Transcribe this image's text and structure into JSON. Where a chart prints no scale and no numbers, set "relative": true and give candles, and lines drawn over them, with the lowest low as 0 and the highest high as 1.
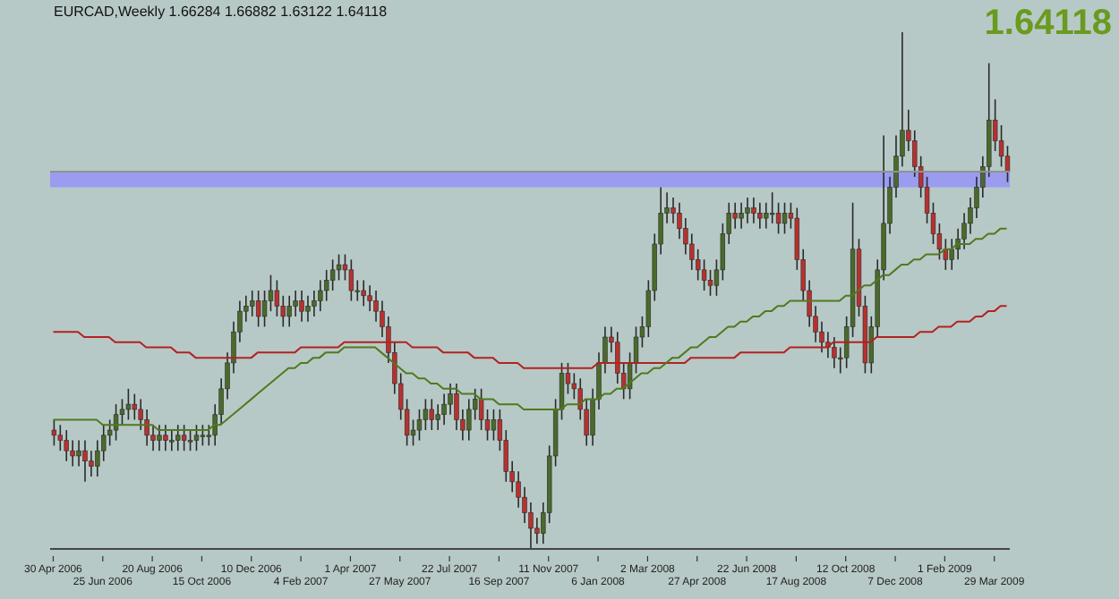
{
  "chart_data": {
    "type": "candlestick",
    "title": "EURCAD,Weekly 1.66284 1.66882 1.63122 1.64118",
    "annotations": [
      "1.64118"
    ],
    "relative": true,
    "categories": [
      "30 Apr 2006",
      null,
      null,
      null,
      null,
      null,
      null,
      null,
      "25 Jun 2006",
      null,
      null,
      null,
      null,
      null,
      null,
      null,
      "20 Aug 2006",
      null,
      null,
      null,
      null,
      null,
      null,
      null,
      "15 Oct 2006",
      null,
      null,
      null,
      null,
      null,
      null,
      null,
      "10 Dec 2006",
      null,
      null,
      null,
      null,
      null,
      null,
      null,
      "4 Feb 2007",
      null,
      null,
      null,
      null,
      null,
      null,
      null,
      "1 Apr 2007",
      null,
      null,
      null,
      null,
      null,
      null,
      null,
      "27 May 2007",
      null,
      null,
      null,
      null,
      null,
      null,
      null,
      "22 Jul 2007",
      null,
      null,
      null,
      null,
      null,
      null,
      null,
      "16 Sep 2007",
      null,
      null,
      null,
      null,
      null,
      null,
      null,
      "11 Nov 2007",
      null,
      null,
      null,
      null,
      null,
      null,
      null,
      "6 Jan 2008",
      null,
      null,
      null,
      null,
      null,
      null,
      null,
      "2 Mar 2008",
      null,
      null,
      null,
      null,
      null,
      null,
      null,
      "27 Apr 2008",
      null,
      null,
      null,
      null,
      null,
      null,
      null,
      "22 Jun 2008",
      null,
      null,
      null,
      null,
      null,
      null,
      null,
      "17 Aug 2008",
      null,
      null,
      null,
      null,
      null,
      null,
      null,
      "12 Oct 2008",
      null,
      null,
      null,
      null,
      null,
      null,
      null,
      "7 Dec 2008",
      null,
      null,
      null,
      null,
      null,
      null,
      null,
      "1 Feb 2009",
      null,
      null,
      null,
      null,
      null,
      null,
      null,
      "29 Mar 2009",
      null,
      null
    ],
    "ohlc": [
      [
        0.23,
        0.25,
        0.2,
        0.22
      ],
      [
        0.22,
        0.24,
        0.19,
        0.21
      ],
      [
        0.21,
        0.23,
        0.17,
        0.19
      ],
      [
        0.19,
        0.21,
        0.16,
        0.18
      ],
      [
        0.18,
        0.21,
        0.16,
        0.19
      ],
      [
        0.19,
        0.21,
        0.13,
        0.17
      ],
      [
        0.17,
        0.19,
        0.14,
        0.16
      ],
      [
        0.16,
        0.21,
        0.14,
        0.19
      ],
      [
        0.19,
        0.24,
        0.17,
        0.22
      ],
      [
        0.22,
        0.25,
        0.2,
        0.23
      ],
      [
        0.23,
        0.28,
        0.21,
        0.26
      ],
      [
        0.26,
        0.29,
        0.24,
        0.27
      ],
      [
        0.27,
        0.31,
        0.25,
        0.28
      ],
      [
        0.28,
        0.3,
        0.25,
        0.27
      ],
      [
        0.27,
        0.29,
        0.23,
        0.25
      ],
      [
        0.25,
        0.27,
        0.2,
        0.22
      ],
      [
        0.22,
        0.24,
        0.19,
        0.21
      ],
      [
        0.21,
        0.24,
        0.19,
        0.22
      ],
      [
        0.22,
        0.24,
        0.19,
        0.21
      ],
      [
        0.21,
        0.23,
        0.19,
        0.21
      ],
      [
        0.21,
        0.24,
        0.19,
        0.22
      ],
      [
        0.22,
        0.24,
        0.19,
        0.21
      ],
      [
        0.21,
        0.23,
        0.19,
        0.21
      ],
      [
        0.21,
        0.24,
        0.19,
        0.22
      ],
      [
        0.22,
        0.24,
        0.2,
        0.22
      ],
      [
        0.22,
        0.24,
        0.2,
        0.22
      ],
      [
        0.22,
        0.28,
        0.2,
        0.26
      ],
      [
        0.26,
        0.33,
        0.24,
        0.31
      ],
      [
        0.31,
        0.38,
        0.29,
        0.36
      ],
      [
        0.36,
        0.44,
        0.34,
        0.42
      ],
      [
        0.42,
        0.48,
        0.4,
        0.46
      ],
      [
        0.46,
        0.49,
        0.44,
        0.47
      ],
      [
        0.47,
        0.5,
        0.45,
        0.48
      ],
      [
        0.48,
        0.5,
        0.43,
        0.45
      ],
      [
        0.45,
        0.5,
        0.43,
        0.48
      ],
      [
        0.48,
        0.53,
        0.46,
        0.5
      ],
      [
        0.5,
        0.52,
        0.45,
        0.47
      ],
      [
        0.47,
        0.49,
        0.43,
        0.45
      ],
      [
        0.45,
        0.49,
        0.43,
        0.47
      ],
      [
        0.47,
        0.5,
        0.45,
        0.48
      ],
      [
        0.48,
        0.5,
        0.44,
        0.46
      ],
      [
        0.46,
        0.49,
        0.44,
        0.47
      ],
      [
        0.47,
        0.5,
        0.45,
        0.48
      ],
      [
        0.48,
        0.52,
        0.46,
        0.5
      ],
      [
        0.5,
        0.54,
        0.48,
        0.52
      ],
      [
        0.52,
        0.56,
        0.5,
        0.54
      ],
      [
        0.54,
        0.57,
        0.52,
        0.55
      ],
      [
        0.55,
        0.57,
        0.52,
        0.54
      ],
      [
        0.54,
        0.56,
        0.48,
        0.5
      ],
      [
        0.5,
        0.52,
        0.48,
        0.5
      ],
      [
        0.5,
        0.52,
        0.47,
        0.49
      ],
      [
        0.49,
        0.51,
        0.46,
        0.48
      ],
      [
        0.48,
        0.5,
        0.44,
        0.46
      ],
      [
        0.46,
        0.48,
        0.41,
        0.43
      ],
      [
        0.43,
        0.45,
        0.36,
        0.38
      ],
      [
        0.38,
        0.4,
        0.3,
        0.32
      ],
      [
        0.32,
        0.34,
        0.25,
        0.27
      ],
      [
        0.27,
        0.29,
        0.2,
        0.22
      ],
      [
        0.22,
        0.25,
        0.2,
        0.23
      ],
      [
        0.23,
        0.27,
        0.21,
        0.25
      ],
      [
        0.25,
        0.29,
        0.23,
        0.27
      ],
      [
        0.27,
        0.29,
        0.23,
        0.25
      ],
      [
        0.25,
        0.28,
        0.23,
        0.26
      ],
      [
        0.26,
        0.3,
        0.24,
        0.28
      ],
      [
        0.28,
        0.32,
        0.26,
        0.3
      ],
      [
        0.3,
        0.32,
        0.23,
        0.25
      ],
      [
        0.25,
        0.27,
        0.21,
        0.23
      ],
      [
        0.23,
        0.29,
        0.21,
        0.27
      ],
      [
        0.27,
        0.31,
        0.25,
        0.29
      ],
      [
        0.29,
        0.31,
        0.23,
        0.25
      ],
      [
        0.25,
        0.27,
        0.21,
        0.23
      ],
      [
        0.23,
        0.27,
        0.21,
        0.25
      ],
      [
        0.25,
        0.27,
        0.19,
        0.21
      ],
      [
        0.21,
        0.23,
        0.13,
        0.15
      ],
      [
        0.15,
        0.17,
        0.11,
        0.13
      ],
      [
        0.13,
        0.15,
        0.08,
        0.1
      ],
      [
        0.1,
        0.12,
        0.05,
        0.07
      ],
      [
        0.07,
        0.09,
        0.0,
        0.04
      ],
      [
        0.04,
        0.06,
        0.01,
        0.03
      ],
      [
        0.03,
        0.09,
        0.01,
        0.07
      ],
      [
        0.07,
        0.2,
        0.05,
        0.18
      ],
      [
        0.18,
        0.29,
        0.16,
        0.27
      ],
      [
        0.27,
        0.36,
        0.25,
        0.34
      ],
      [
        0.34,
        0.36,
        0.3,
        0.32
      ],
      [
        0.32,
        0.34,
        0.29,
        0.31
      ],
      [
        0.31,
        0.33,
        0.25,
        0.27
      ],
      [
        0.27,
        0.29,
        0.2,
        0.22
      ],
      [
        0.22,
        0.31,
        0.2,
        0.29
      ],
      [
        0.29,
        0.38,
        0.27,
        0.36
      ],
      [
        0.36,
        0.43,
        0.34,
        0.41
      ],
      [
        0.41,
        0.43,
        0.38,
        0.4
      ],
      [
        0.4,
        0.42,
        0.32,
        0.34
      ],
      [
        0.34,
        0.36,
        0.29,
        0.31
      ],
      [
        0.31,
        0.38,
        0.29,
        0.36
      ],
      [
        0.36,
        0.43,
        0.34,
        0.41
      ],
      [
        0.41,
        0.45,
        0.39,
        0.43
      ],
      [
        0.43,
        0.52,
        0.41,
        0.5
      ],
      [
        0.5,
        0.61,
        0.48,
        0.59
      ],
      [
        0.59,
        0.7,
        0.57,
        0.65
      ],
      [
        0.65,
        0.69,
        0.63,
        0.66
      ],
      [
        0.66,
        0.68,
        0.63,
        0.65
      ],
      [
        0.65,
        0.67,
        0.6,
        0.62
      ],
      [
        0.62,
        0.64,
        0.57,
        0.59
      ],
      [
        0.59,
        0.61,
        0.54,
        0.56
      ],
      [
        0.56,
        0.58,
        0.52,
        0.54
      ],
      [
        0.54,
        0.56,
        0.5,
        0.52
      ],
      [
        0.52,
        0.54,
        0.49,
        0.51
      ],
      [
        0.51,
        0.56,
        0.49,
        0.54
      ],
      [
        0.54,
        0.63,
        0.52,
        0.61
      ],
      [
        0.61,
        0.67,
        0.59,
        0.65
      ],
      [
        0.65,
        0.67,
        0.62,
        0.64
      ],
      [
        0.64,
        0.67,
        0.62,
        0.65
      ],
      [
        0.65,
        0.68,
        0.63,
        0.66
      ],
      [
        0.66,
        0.68,
        0.63,
        0.65
      ],
      [
        0.65,
        0.67,
        0.62,
        0.64
      ],
      [
        0.64,
        0.67,
        0.62,
        0.65
      ],
      [
        0.65,
        0.69,
        0.63,
        0.65
      ],
      [
        0.65,
        0.67,
        0.61,
        0.63
      ],
      [
        0.63,
        0.67,
        0.61,
        0.65
      ],
      [
        0.65,
        0.67,
        0.62,
        0.64
      ],
      [
        0.64,
        0.66,
        0.54,
        0.56
      ],
      [
        0.56,
        0.58,
        0.48,
        0.5
      ],
      [
        0.5,
        0.52,
        0.43,
        0.45
      ],
      [
        0.45,
        0.47,
        0.4,
        0.42
      ],
      [
        0.42,
        0.44,
        0.38,
        0.4
      ],
      [
        0.4,
        0.42,
        0.37,
        0.39
      ],
      [
        0.39,
        0.41,
        0.35,
        0.37
      ],
      [
        0.37,
        0.39,
        0.34,
        0.37
      ],
      [
        0.37,
        0.45,
        0.35,
        0.43
      ],
      [
        0.43,
        0.67,
        0.41,
        0.58
      ],
      [
        0.58,
        0.6,
        0.45,
        0.47
      ],
      [
        0.47,
        0.49,
        0.34,
        0.36
      ],
      [
        0.36,
        0.45,
        0.34,
        0.43
      ],
      [
        0.43,
        0.56,
        0.41,
        0.54
      ],
      [
        0.54,
        0.8,
        0.52,
        0.63
      ],
      [
        0.63,
        0.72,
        0.61,
        0.7
      ],
      [
        0.7,
        0.8,
        0.68,
        0.76
      ],
      [
        0.76,
        1.0,
        0.74,
        0.81
      ],
      [
        0.81,
        0.85,
        0.77,
        0.79
      ],
      [
        0.79,
        0.81,
        0.72,
        0.74
      ],
      [
        0.74,
        0.76,
        0.68,
        0.7
      ],
      [
        0.7,
        0.72,
        0.63,
        0.65
      ],
      [
        0.65,
        0.67,
        0.59,
        0.61
      ],
      [
        0.61,
        0.63,
        0.56,
        0.58
      ],
      [
        0.58,
        0.6,
        0.54,
        0.56
      ],
      [
        0.56,
        0.6,
        0.54,
        0.58
      ],
      [
        0.58,
        0.62,
        0.56,
        0.6
      ],
      [
        0.6,
        0.65,
        0.58,
        0.63
      ],
      [
        0.63,
        0.68,
        0.61,
        0.66
      ],
      [
        0.66,
        0.72,
        0.64,
        0.7
      ],
      [
        0.7,
        0.76,
        0.68,
        0.74
      ],
      [
        0.74,
        0.94,
        0.72,
        0.83
      ],
      [
        0.83,
        0.87,
        0.77,
        0.79
      ],
      [
        0.79,
        0.82,
        0.74,
        0.76
      ],
      [
        0.76,
        0.78,
        0.71,
        0.73
      ]
    ],
    "series": [
      {
        "type": "line",
        "color": "#b22222",
        "values": [
          0.42,
          0.42,
          0.42,
          0.42,
          0.42,
          0.41,
          0.41,
          0.41,
          0.41,
          0.41,
          0.4,
          0.4,
          0.4,
          0.4,
          0.4,
          0.39,
          0.39,
          0.39,
          0.39,
          0.39,
          0.38,
          0.38,
          0.38,
          0.37,
          0.37,
          0.37,
          0.37,
          0.37,
          0.37,
          0.37,
          0.37,
          0.37,
          0.37,
          0.38,
          0.38,
          0.38,
          0.38,
          0.38,
          0.38,
          0.38,
          0.39,
          0.39,
          0.39,
          0.39,
          0.39,
          0.39,
          0.39,
          0.4,
          0.4,
          0.4,
          0.4,
          0.4,
          0.4,
          0.4,
          0.4,
          0.4,
          0.4,
          0.4,
          0.39,
          0.39,
          0.39,
          0.39,
          0.39,
          0.38,
          0.38,
          0.38,
          0.38,
          0.38,
          0.37,
          0.37,
          0.37,
          0.37,
          0.36,
          0.36,
          0.36,
          0.36,
          0.35,
          0.35,
          0.35,
          0.35,
          0.35,
          0.35,
          0.35,
          0.35,
          0.35,
          0.35,
          0.35,
          0.35,
          0.36,
          0.36,
          0.36,
          0.36,
          0.36,
          0.36,
          0.36,
          0.36,
          0.36,
          0.36,
          0.36,
          0.36,
          0.36,
          0.36,
          0.36,
          0.37,
          0.37,
          0.37,
          0.37,
          0.37,
          0.37,
          0.37,
          0.37,
          0.38,
          0.38,
          0.38,
          0.38,
          0.38,
          0.38,
          0.38,
          0.38,
          0.39,
          0.39,
          0.39,
          0.39,
          0.39,
          0.39,
          0.39,
          0.4,
          0.4,
          0.4,
          0.4,
          0.4,
          0.4,
          0.4,
          0.41,
          0.41,
          0.41,
          0.41,
          0.41,
          0.41,
          0.41,
          0.42,
          0.42,
          0.42,
          0.43,
          0.43,
          0.43,
          0.44,
          0.44,
          0.44,
          0.45,
          0.45,
          0.46,
          0.46,
          0.47,
          0.47
        ]
      },
      {
        "type": "line",
        "color": "#4f7a1e",
        "values": [
          0.25,
          0.25,
          0.25,
          0.25,
          0.25,
          0.25,
          0.25,
          0.25,
          0.24,
          0.24,
          0.24,
          0.24,
          0.24,
          0.24,
          0.24,
          0.24,
          0.24,
          0.23,
          0.23,
          0.23,
          0.23,
          0.23,
          0.23,
          0.23,
          0.23,
          0.23,
          0.24,
          0.24,
          0.25,
          0.26,
          0.27,
          0.28,
          0.29,
          0.3,
          0.31,
          0.32,
          0.33,
          0.34,
          0.35,
          0.35,
          0.36,
          0.36,
          0.37,
          0.37,
          0.38,
          0.38,
          0.38,
          0.39,
          0.39,
          0.39,
          0.39,
          0.39,
          0.39,
          0.38,
          0.37,
          0.36,
          0.35,
          0.34,
          0.34,
          0.33,
          0.33,
          0.32,
          0.32,
          0.31,
          0.31,
          0.31,
          0.3,
          0.3,
          0.3,
          0.29,
          0.29,
          0.29,
          0.28,
          0.28,
          0.28,
          0.28,
          0.27,
          0.27,
          0.27,
          0.27,
          0.27,
          0.27,
          0.27,
          0.28,
          0.28,
          0.28,
          0.29,
          0.29,
          0.29,
          0.3,
          0.3,
          0.31,
          0.31,
          0.32,
          0.33,
          0.34,
          0.34,
          0.35,
          0.35,
          0.36,
          0.37,
          0.37,
          0.38,
          0.39,
          0.39,
          0.4,
          0.41,
          0.41,
          0.42,
          0.43,
          0.43,
          0.44,
          0.44,
          0.45,
          0.45,
          0.46,
          0.46,
          0.47,
          0.47,
          0.48,
          0.48,
          0.48,
          0.48,
          0.48,
          0.48,
          0.48,
          0.48,
          0.48,
          0.49,
          0.49,
          0.5,
          0.51,
          0.51,
          0.52,
          0.53,
          0.53,
          0.54,
          0.55,
          0.55,
          0.56,
          0.56,
          0.57,
          0.57,
          0.57,
          0.58,
          0.58,
          0.59,
          0.59,
          0.59,
          0.6,
          0.6,
          0.61,
          0.61,
          0.62,
          0.62
        ]
      }
    ],
    "ref_lines": [
      {
        "axis": "y",
        "value": 0.73,
        "color": "#8a9490"
      }
    ],
    "bands": [
      {
        "axis": "y",
        "from": 0.7,
        "to": 0.73,
        "color": "#9b9bf0"
      }
    ]
  }
}
